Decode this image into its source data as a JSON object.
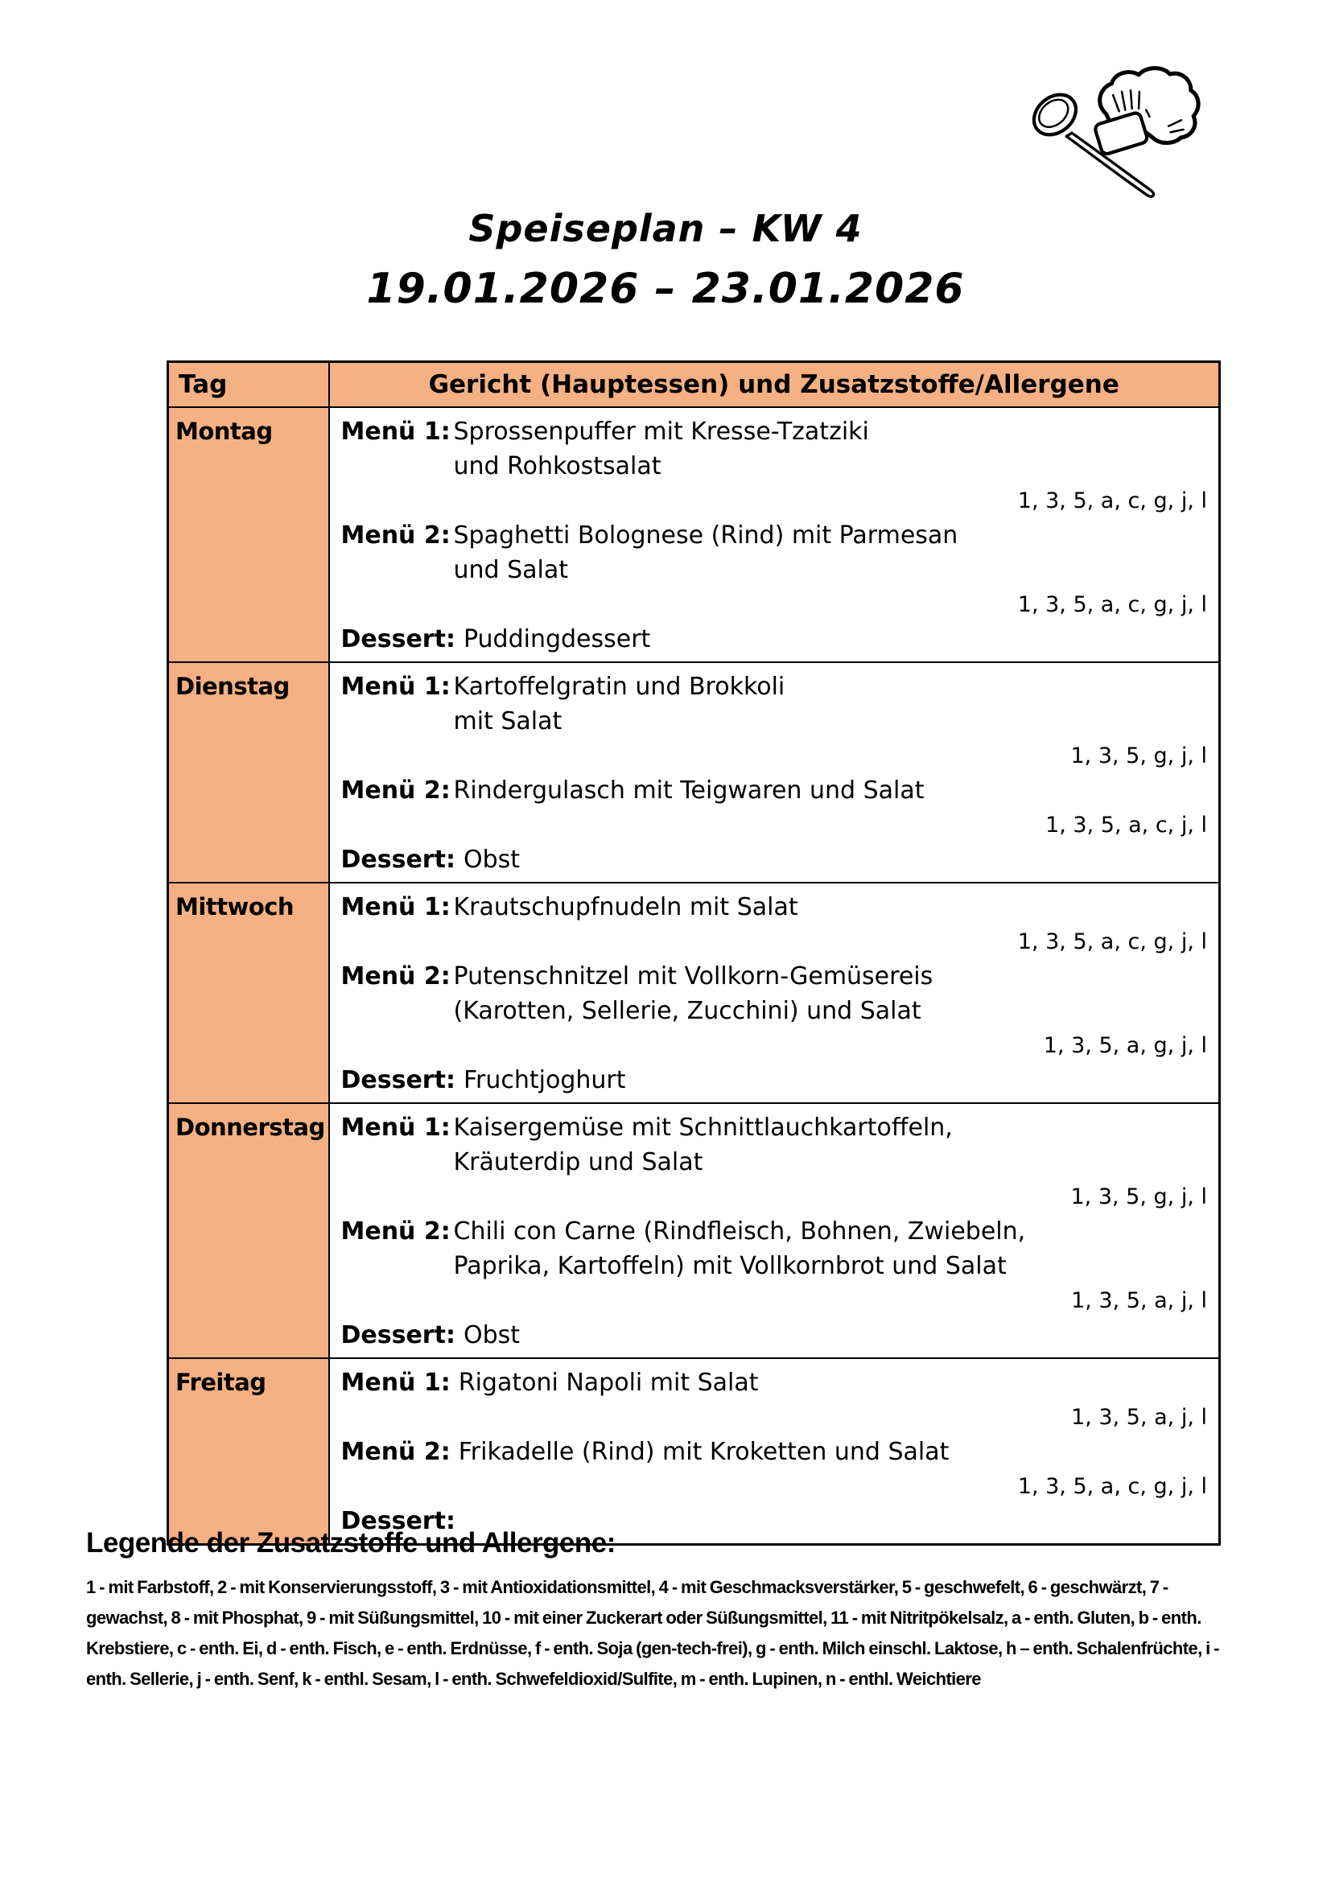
{
  "title": {
    "line1": "Speiseplan – KW 4",
    "line2": "19.01.2026 – 23.01.2026"
  },
  "icons": {
    "header_icon": "chef-hat-and-spoon-icon"
  },
  "colors": {
    "cell_orange": "#F5B183",
    "border": "#000000",
    "text": "#000000"
  },
  "table": {
    "headers": {
      "day": "Tag",
      "dish": "Gericht (Hauptessen) und Zusatzstoffe/Allergene"
    },
    "days": [
      {
        "name": "Montag",
        "lines": [
          {
            "type": "menu",
            "label": "Menü 1:",
            "text": "Sprossenpuffer mit Kresse-Tzatziki",
            "tab": true
          },
          {
            "type": "cont",
            "text": "und Rohkostsalat"
          },
          {
            "type": "allergens",
            "text": "1, 3, 5, a, c, g, j, l"
          },
          {
            "type": "menu",
            "label": "Menü 2:",
            "text": "Spaghetti Bolognese (Rind) mit Parmesan",
            "tab": true
          },
          {
            "type": "cont",
            "text": "und Salat"
          },
          {
            "type": "allergens",
            "text": "1, 3, 5, a, c, g, j, l"
          },
          {
            "type": "dessert",
            "label": "Dessert:",
            "text": "Puddingdessert"
          }
        ]
      },
      {
        "name": "Dienstag",
        "lines": [
          {
            "type": "menu",
            "label": "Menü 1:",
            "text": "Kartoffelgratin und Brokkoli",
            "tab": true
          },
          {
            "type": "cont",
            "text": "mit Salat"
          },
          {
            "type": "allergens",
            "text": "1, 3, 5, g, j, l"
          },
          {
            "type": "menu",
            "label": "Menü 2:",
            "text": "Rindergulasch mit Teigwaren und Salat",
            "tab": true
          },
          {
            "type": "allergens",
            "text": "1, 3, 5, a, c, j, l"
          },
          {
            "type": "dessert",
            "label": "Dessert:",
            "text": "Obst"
          }
        ]
      },
      {
        "name": "Mittwoch",
        "lines": [
          {
            "type": "menu",
            "label": "Menü 1:",
            "text": "Krautschupfnudeln mit Salat",
            "tab": true
          },
          {
            "type": "allergens",
            "text": "1, 3, 5, a, c, g, j, l"
          },
          {
            "type": "menu",
            "label": "Menü 2:",
            "text": "Putenschnitzel mit Vollkorn-Gemüsereis",
            "tab": true
          },
          {
            "type": "cont",
            "text": "(Karotten, Sellerie, Zucchini) und Salat"
          },
          {
            "type": "allergens",
            "text": "1, 3, 5, a, g, j, l"
          },
          {
            "type": "dessert",
            "label": "Dessert:",
            "text": "Fruchtjoghurt"
          }
        ]
      },
      {
        "name": "Donnerstag",
        "lines": [
          {
            "type": "menu",
            "label": "Menü 1:",
            "text": "Kaisergemüse mit Schnittlauchkartoffeln,",
            "tab": true
          },
          {
            "type": "cont",
            "text": "Kräuterdip und Salat"
          },
          {
            "type": "allergens",
            "text": "1, 3, 5, g, j, l"
          },
          {
            "type": "menu",
            "label": "Menü 2:",
            "text": "Chili con Carne (Rindfleisch, Bohnen, Zwiebeln,",
            "tab": true
          },
          {
            "type": "cont",
            "text": "Paprika, Kartoffeln) mit Vollkornbrot und Salat"
          },
          {
            "type": "allergens",
            "text": "1, 3, 5, a, j, l"
          },
          {
            "type": "dessert",
            "label": "Dessert:",
            "text": "Obst"
          }
        ]
      },
      {
        "name": "Freitag",
        "lines": [
          {
            "type": "menu",
            "label": "Menü 1:",
            "text": "Rigatoni Napoli mit Salat",
            "tab": false
          },
          {
            "type": "allergens",
            "text": "1, 3, 5, a, j, l"
          },
          {
            "type": "menu",
            "label": "Menü 2:",
            "text": "Frikadelle (Rind) mit Kroketten und Salat",
            "tab": false
          },
          {
            "type": "allergens",
            "text": "1, 3, 5, a, c, g, j, l"
          },
          {
            "type": "dessert",
            "label": "Dessert:",
            "text": ""
          }
        ]
      }
    ]
  },
  "legend": {
    "heading": "Legende der Zusatzstoffe und Allergene:",
    "text": "1 - mit Farbstoff, 2 - mit Konservierungsstoff, 3 - mit Antioxidationsmittel, 4 - mit Geschmacksverstärker, 5 - geschwefelt, 6 - geschwärzt, 7 - gewachst, 8 - mit Phosphat, 9 - mit Süßungsmittel, 10 - mit einer Zuckerart oder Süßungsmittel, 11 - mit Nitritpökelsalz, a - enth. Gluten, b - enth. Krebstiere, c - enth. Ei, d - enth. Fisch, e - enth. Erdnüsse, f - enth. Soja (gen-tech-frei), g - enth. Milch einschl. Laktose, h – enth. Schalenfrüchte, i - enth. Sellerie, j - enth. Senf, k - enthl. Sesam, l - enth. Schwefeldioxid/Sulfite, m - enth. Lupinen, n - enthl. Weichtiere"
  }
}
